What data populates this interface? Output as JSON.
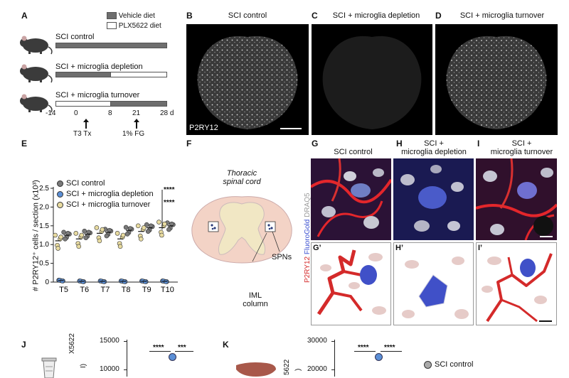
{
  "panelA": {
    "label": "A",
    "legend_vehicle": "Vehicle diet",
    "legend_plx": "PLX5622 diet",
    "rows": [
      {
        "label": "SCI control"
      },
      {
        "label": "SCI + microglia depletion"
      },
      {
        "label": "SCI + microglia turnover"
      }
    ],
    "ticks": [
      "-14",
      "0",
      "8",
      "21",
      "28 d"
    ],
    "events": [
      "T3 Tx",
      "1% FG"
    ]
  },
  "panelB": {
    "label": "B",
    "title": "SCI control",
    "marker": "P2RY12"
  },
  "panelC": {
    "label": "C",
    "title": "SCI + microglia depletion"
  },
  "panelD": {
    "label": "D",
    "title": "SCI + microglia turnover"
  },
  "panelE": {
    "label": "E",
    "ylabel": "# P2RY12⁺ cells / section (x10³)",
    "significance": [
      "****",
      "****"
    ],
    "chart_data": {
      "type": "scatter",
      "categories": [
        "T5",
        "T6",
        "T7",
        "T8",
        "T9",
        "T10"
      ],
      "ylim": [
        0,
        2.5
      ],
      "yticks": [
        "0",
        "0.5",
        "1.0",
        "1.5",
        "2.0",
        "2.5"
      ],
      "series": [
        {
          "name": "SCI control",
          "color": "#7a7a7a",
          "values": [
            1.25,
            1.28,
            1.33,
            1.38,
            1.45,
            1.5
          ]
        },
        {
          "name": "SCI + microglia depletion",
          "color": "#5b8fd6",
          "values": [
            0.04,
            0.02,
            0.02,
            0.02,
            0.02,
            0.02
          ]
        },
        {
          "name": "SCI + microglia turnover",
          "color": "#e8dba0",
          "values": [
            1.1,
            1.15,
            1.3,
            1.15,
            1.35,
            1.45
          ]
        }
      ]
    }
  },
  "panelF": {
    "label": "F",
    "title_line1": "Thoracic",
    "title_line2": "spinal cord",
    "spns": "SPNs",
    "iml_line1": "IML",
    "iml_line2": "column"
  },
  "panelG": {
    "label": "G",
    "title": "SCI control",
    "sub": "G’"
  },
  "panelH": {
    "label": "H",
    "title_line1": "SCI +",
    "title_line2": "microglia depletion",
    "sub": "H’"
  },
  "panelI": {
    "label": "I",
    "title_line1": "SCI +",
    "title_line2": "microglia turnover",
    "sub": "I’"
  },
  "stain": {
    "p2ry12": "P2RY12",
    "fluorogold": "FluoroGold",
    "draq5": "DRAQ5"
  },
  "panelJ": {
    "label": "J",
    "ylabel_fragment": "X5622",
    "ylabel_fragment2": "I)",
    "yticks": [
      "15000",
      "10000"
    ],
    "sig": [
      "****",
      "***"
    ]
  },
  "panelK": {
    "label": "K",
    "ylabel_fragment": "5622",
    "ylabel_fragment2": ")",
    "yticks": [
      "30000",
      "20000"
    ],
    "sig": [
      "****",
      "****"
    ],
    "legend": "SCI control"
  },
  "colors": {
    "vehicle": "#6e6e6e",
    "red": "#d42a2a",
    "blue": "#3a4fd0",
    "cordOuter": "#f3d3c6",
    "cordInner": "#f1e7c4"
  }
}
